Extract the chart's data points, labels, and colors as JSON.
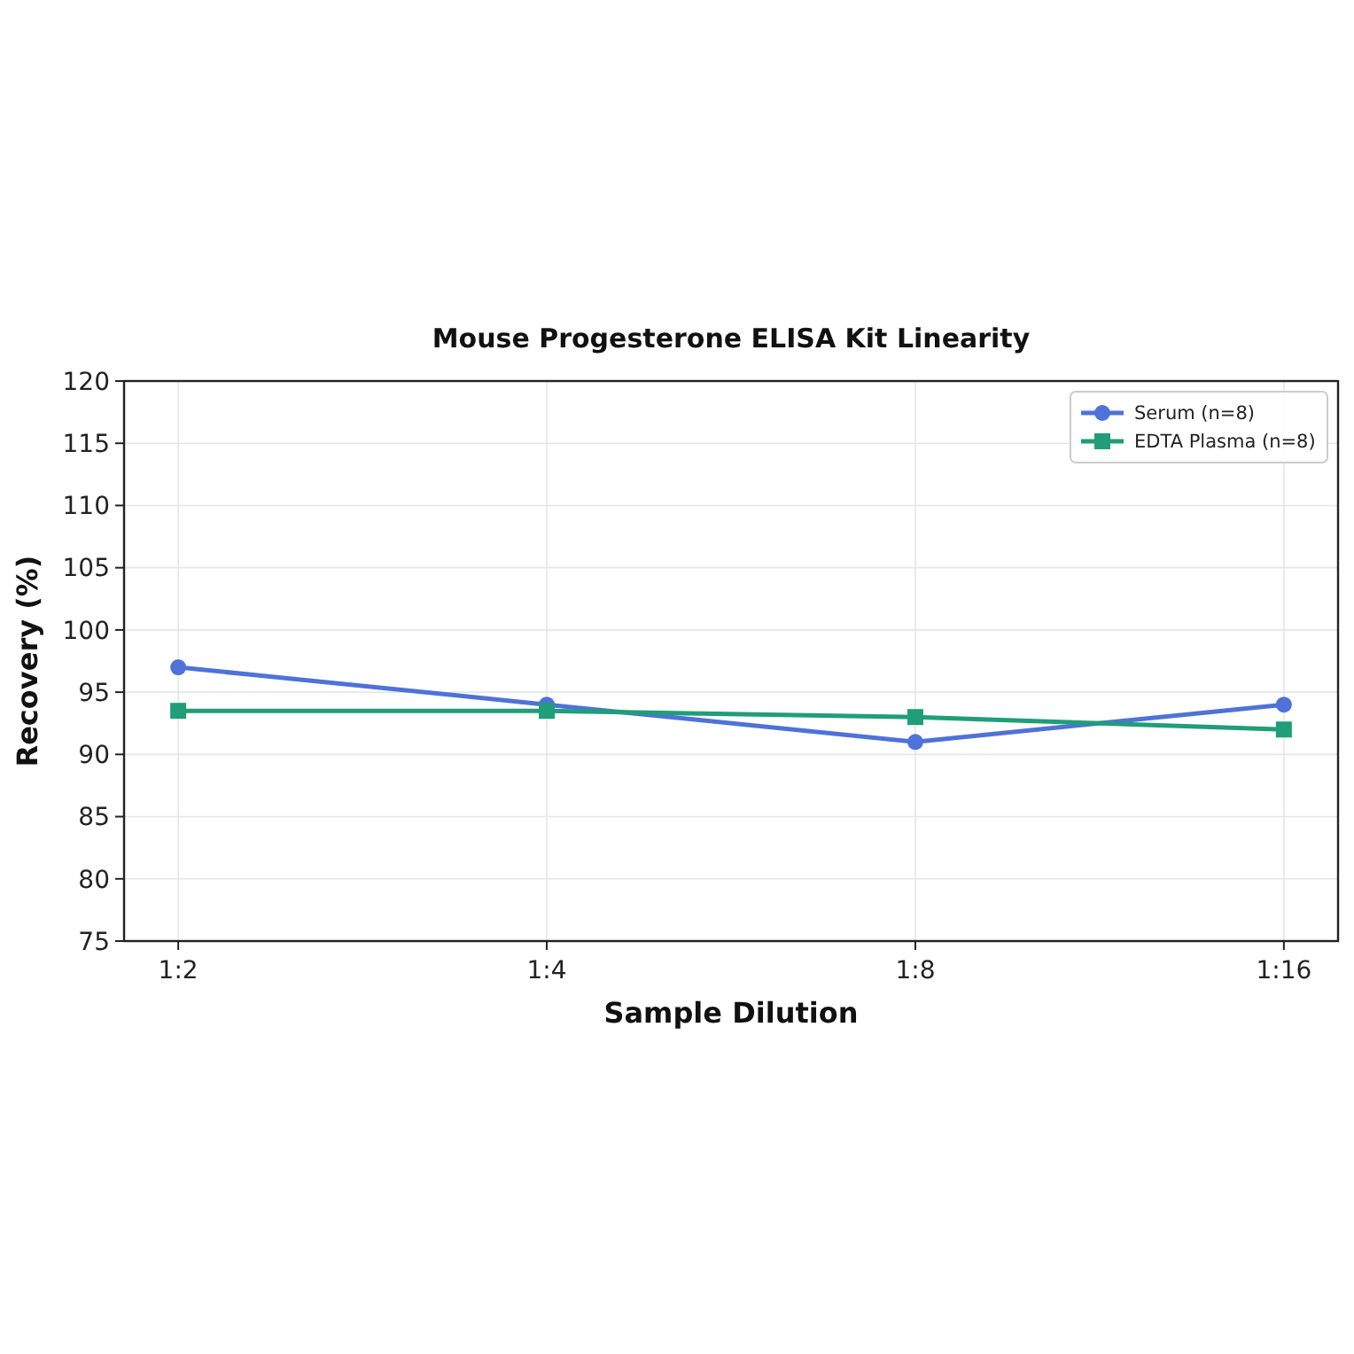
{
  "chart_data": {
    "type": "line",
    "title": "Mouse Progesterone ELISA Kit Linearity",
    "xlabel": "Sample Dilution",
    "ylabel": "Recovery (%)",
    "categories": [
      "1:2",
      "1:4",
      "1:8",
      "1:16"
    ],
    "series": [
      {
        "name": "Serum (n=8)",
        "color": "#4e72d8",
        "values": [
          97,
          94,
          91,
          94
        ],
        "marker": "circle"
      },
      {
        "name": "EDTA Plasma (n=8)",
        "color": "#1f9e78",
        "values": [
          93.5,
          93.5,
          93,
          92
        ],
        "marker": "square"
      }
    ],
    "ylim": [
      75,
      120
    ],
    "yticks": [
      75,
      80,
      85,
      90,
      95,
      100,
      105,
      110,
      115,
      120
    ],
    "grid": true,
    "legend": "top right",
    "line_style": "solid"
  }
}
